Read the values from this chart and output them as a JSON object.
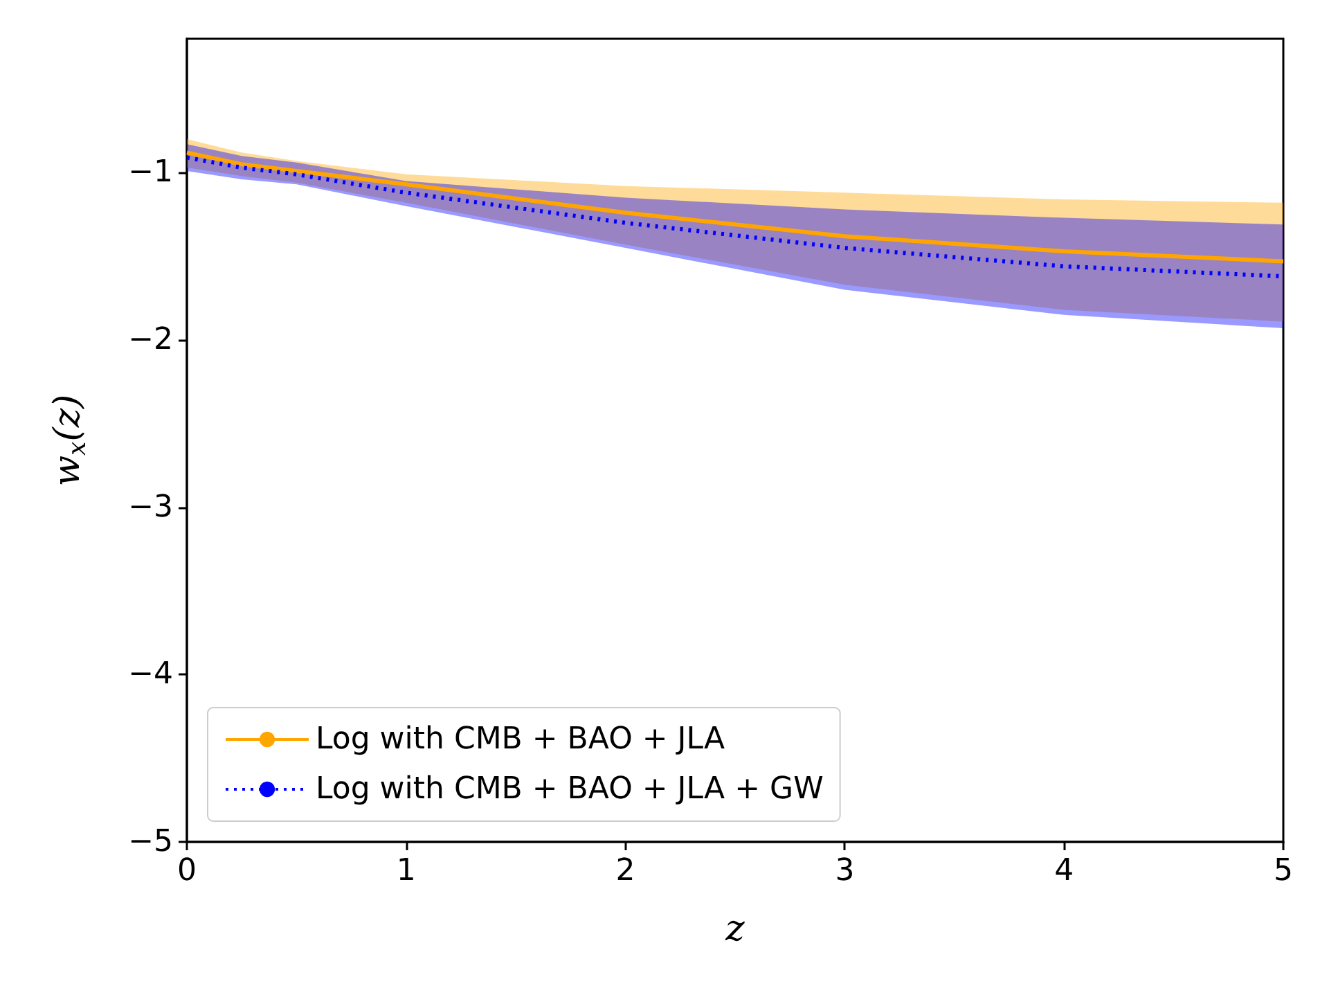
{
  "chart_data": {
    "type": "line",
    "xlabel": "z",
    "ylabel": "w$_{x}$(z)",
    "x": [
      0,
      0.25,
      0.5,
      1,
      2,
      3,
      4,
      5
    ],
    "series": [
      {
        "name": "Log with CMB + BAO + JLA",
        "color": "#ffa500",
        "line_style": "solid",
        "values": [
          -0.88,
          -0.95,
          -0.99,
          -1.07,
          -1.24,
          -1.38,
          -1.47,
          -1.53
        ],
        "upper": [
          -0.8,
          -0.88,
          -0.93,
          -1.01,
          -1.08,
          -1.12,
          -1.16,
          -1.18
        ],
        "lower": [
          -0.97,
          -1.02,
          -1.06,
          -1.18,
          -1.43,
          -1.67,
          -1.82,
          -1.89
        ]
      },
      {
        "name": "Log with CMB + BAO + JLA + GW",
        "color": "#0000ff",
        "line_style": "dotted",
        "values": [
          -0.91,
          -0.97,
          -1.01,
          -1.12,
          -1.3,
          -1.45,
          -1.56,
          -1.62
        ],
        "upper": [
          -0.83,
          -0.9,
          -0.94,
          -1.05,
          -1.15,
          -1.22,
          -1.27,
          -1.31
        ],
        "lower": [
          -0.99,
          -1.04,
          -1.07,
          -1.2,
          -1.45,
          -1.7,
          -1.85,
          -1.93
        ]
      }
    ],
    "xlim": [
      0,
      5
    ],
    "xticks": [
      0,
      1,
      2,
      3,
      4,
      5
    ],
    "ylim": [
      -5,
      -0.2
    ],
    "yticks": [
      {
        "value": -5,
        "label": "−5"
      },
      {
        "value": -4,
        "label": "−4"
      },
      {
        "value": -3,
        "label": "−3"
      },
      {
        "value": -2,
        "label": "−2"
      },
      {
        "value": -1,
        "label": "−1"
      }
    ],
    "grid": false,
    "legend": "bottom left",
    "marker": "none"
  }
}
